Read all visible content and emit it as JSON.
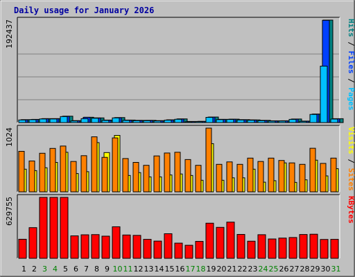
{
  "chart_data": {
    "type": "bar",
    "title": "Daily usage for January 2026",
    "categories": [
      "1",
      "2",
      "3",
      "4",
      "5",
      "6",
      "7",
      "8",
      "9",
      "10",
      "11",
      "12",
      "13",
      "14",
      "15",
      "16",
      "17",
      "18",
      "19",
      "20",
      "21",
      "22",
      "23",
      "24",
      "25",
      "26",
      "27",
      "28",
      "29",
      "30",
      "31"
    ],
    "weekend_days": [
      "3",
      "4",
      "10",
      "11",
      "17",
      "18",
      "24",
      "25",
      "31"
    ],
    "panels": [
      {
        "id": "hits",
        "scale_label": "192437",
        "ylim": [
          0,
          192437
        ],
        "legend": [
          "Pages",
          "Files",
          "Hits"
        ],
        "legend_colors": [
          "#00c0ff",
          "#0040ff",
          "#008080"
        ],
        "series": [
          {
            "name": "Hits",
            "color": "#008080",
            "values": [
              5500,
              6000,
              7400,
              7400,
              12000,
              3600,
              10000,
              8800,
              4700,
              9400,
              4700,
              4200,
              4200,
              3600,
              5200,
              6900,
              2100,
              2300,
              10400,
              6100,
              6400,
              5500,
              5000,
              4200,
              3300,
              3400,
              6700,
              2800,
              16000,
              192437,
              7300
            ]
          },
          {
            "name": "Files",
            "color": "#0040ff",
            "values": [
              5300,
              5800,
              7200,
              7200,
              11800,
              3400,
              9800,
              8600,
              4500,
              9200,
              4500,
              4000,
              4000,
              3400,
              5000,
              6700,
              1900,
              2100,
              10200,
              5900,
              6200,
              5300,
              4800,
              4000,
              3100,
              3200,
              6500,
              2600,
              15800,
              192000,
              7100
            ]
          },
          {
            "name": "Pages",
            "color": "#00c0ff",
            "values": [
              4900,
              5400,
              6800,
              6800,
              11300,
              3000,
              7300,
              8200,
              4100,
              8800,
              4100,
              3600,
              3600,
              3000,
              4600,
              6200,
              1500,
              1700,
              9800,
              5500,
              5800,
              4900,
              4400,
              3600,
              2700,
              2800,
              6000,
              2200,
              15300,
              106000,
              6600
            ]
          }
        ]
      },
      {
        "id": "visits",
        "scale_label": "1024",
        "ylim": [
          0,
          1024
        ],
        "legend": [
          "Sites",
          "Visits"
        ],
        "legend_colors": [
          "#ff8000",
          "#ffff00"
        ],
        "series": [
          {
            "name": "Visits",
            "color": "#ffff00",
            "values": [
              364,
              341,
              387,
              473,
              636,
              294,
              324,
              791,
              631,
              907,
              263,
              309,
              240,
              240,
              271,
              287,
              263,
              186,
              774,
              186,
              225,
              225,
              364,
              155,
              179,
              465,
              152,
              193,
              509,
              256,
              372
            ]
          },
          {
            "name": "Sites",
            "color": "#ff8000",
            "values": [
              651,
              496,
              620,
              698,
              736,
              488,
              581,
              884,
              554,
              867,
              535,
              473,
              426,
              577,
              624,
              636,
              519,
              426,
              1024,
              442,
              481,
              442,
              542,
              488,
              542,
              504,
              465,
              442,
              700,
              457,
              542
            ]
          }
        ]
      },
      {
        "id": "kbytes",
        "scale_label": "629755",
        "ylim": [
          0,
          629755
        ],
        "legend": [
          "KBytes"
        ],
        "legend_colors": [
          "#ff0000"
        ],
        "series": [
          {
            "name": "KBytes",
            "color": "#ff0000",
            "values": [
              197000,
              317000,
              629755,
              629755,
              629755,
              232000,
              243000,
              245000,
              229000,
              326000,
              241000,
              237000,
              196000,
              178000,
              254000,
              157000,
              135000,
              175000,
              363000,
              320000,
              374000,
              247000,
              177000,
              244000,
              200000,
              209000,
              215000,
              246000,
              249000,
              195000,
              196000
            ]
          }
        ]
      }
    ]
  }
}
